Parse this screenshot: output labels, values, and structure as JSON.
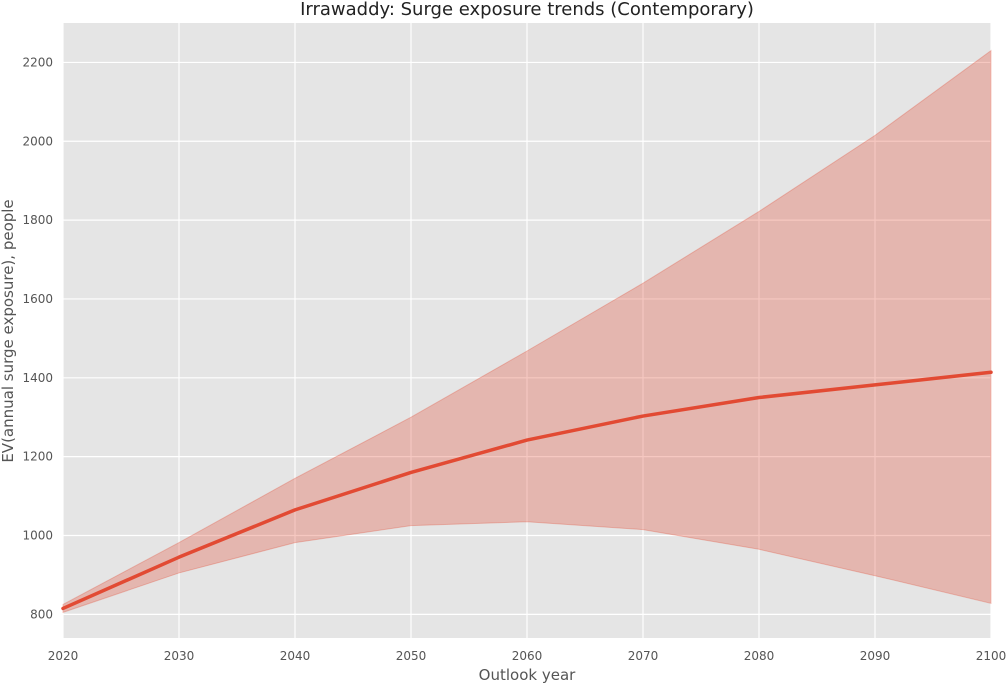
{
  "chart_data": {
    "type": "line",
    "title": "Irrawaddy: Surge exposure trends (Contemporary)",
    "xlabel": "Outlook year",
    "ylabel": "EV(annual surge exposure), people",
    "xlim": [
      2020,
      2100
    ],
    "ylim": [
      740,
      2300
    ],
    "grid": true,
    "x": [
      2020,
      2030,
      2040,
      2050,
      2060,
      2070,
      2080,
      2090,
      2100
    ],
    "xticks": [
      "2020",
      "2030",
      "2040",
      "2050",
      "2060",
      "2070",
      "2080",
      "2090",
      "2100"
    ],
    "yticks": [
      "800",
      "1000",
      "1200",
      "1400",
      "1600",
      "1800",
      "2000",
      "2200"
    ],
    "series": [
      {
        "values": [
          815,
          945,
          1065,
          1160,
          1242,
          1303,
          1350,
          1382,
          1414
        ],
        "lower": [
          805,
          905,
          982,
          1025,
          1035,
          1015,
          965,
          898,
          828
        ],
        "upper": [
          825,
          982,
          1145,
          1300,
          1468,
          1640,
          1822,
          2015,
          2230
        ]
      }
    ],
    "colors": {
      "line": "#E24A33",
      "band": "#E24A33",
      "background": "#E5E5E5",
      "grid": "#FFFFFF"
    }
  }
}
